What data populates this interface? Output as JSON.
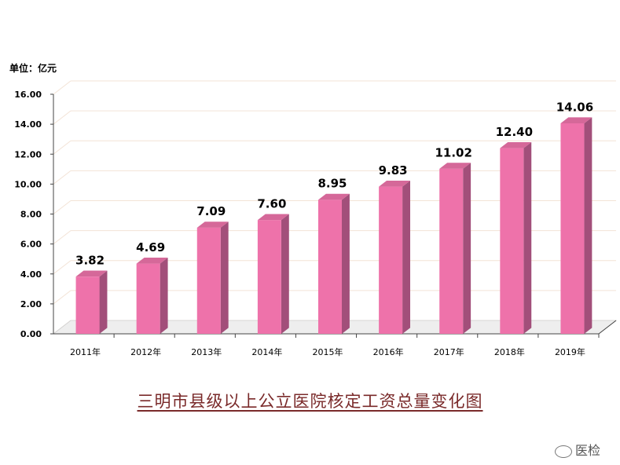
{
  "unit_label": "单位：亿元",
  "caption": "三明市县级以上公立医院核定工资总量变化图",
  "watermark": "医检",
  "colors": {
    "bar_front": "#ee72aa",
    "bar_side": "#a24f7a",
    "bar_top": "#d56899",
    "grid": "#f3e3d6",
    "caption": "#7a2a2a"
  },
  "chart_data": {
    "type": "bar",
    "categories": [
      "2011年",
      "2012年",
      "2013年",
      "2014年",
      "2015年",
      "2016年",
      "2017年",
      "2018年",
      "2019年"
    ],
    "values": [
      3.82,
      4.69,
      7.09,
      7.6,
      8.95,
      9.83,
      11.02,
      12.4,
      14.06
    ],
    "value_labels": [
      "3.82",
      "4.69",
      "7.09",
      "7.60",
      "8.95",
      "9.83",
      "11.02",
      "12.40",
      "14.06"
    ],
    "yticks": [
      "0.00",
      "2.00",
      "4.00",
      "6.00",
      "8.00",
      "10.00",
      "12.00",
      "14.00",
      "16.00"
    ],
    "ylim": [
      0,
      16
    ],
    "grid": true,
    "style": "3d-column"
  }
}
